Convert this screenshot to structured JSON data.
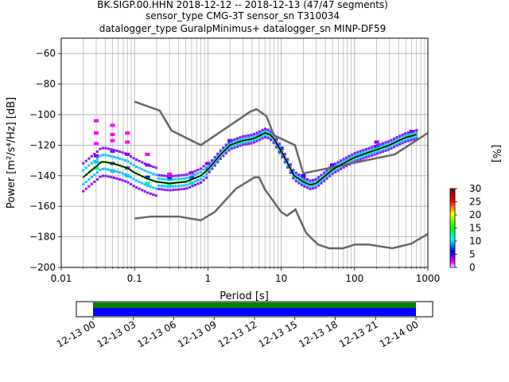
{
  "chart_data": {
    "type": "heatmap",
    "title": {
      "line1": "BK.SIGP.00.HHN   2018-12-12 -- 2018-12-13  (47/47 segments)",
      "line2": "sensor_type CMG-3T sensor_sn T310034",
      "line3": "datalogger_type GuralpMinimus+ datalogger_sn MINP-DF59"
    },
    "xlabel": "Period [s]",
    "ylabel": "Power [m²/s⁴/Hz] [dB]",
    "xscale": "log",
    "xlim": [
      0.01,
      1000
    ],
    "ylim": [
      -200,
      -50
    ],
    "x_ticks": [
      {
        "v": 0.01,
        "label": "0.01"
      },
      {
        "v": 0.1,
        "label": "0.1"
      },
      {
        "v": 1,
        "label": "1"
      },
      {
        "v": 10,
        "label": "10"
      },
      {
        "v": 100,
        "label": "100"
      },
      {
        "v": 1000,
        "label": "1000"
      }
    ],
    "y_ticks": [
      {
        "v": -60,
        "label": "−60"
      },
      {
        "v": -80,
        "label": "−80"
      },
      {
        "v": -100,
        "label": "−100"
      },
      {
        "v": -120,
        "label": "−120"
      },
      {
        "v": -140,
        "label": "−140"
      },
      {
        "v": -160,
        "label": "−160"
      },
      {
        "v": -180,
        "label": "−180"
      },
      {
        "v": -200,
        "label": "−200"
      }
    ],
    "grid": true,
    "colorbar": {
      "label": "[%]",
      "range": [
        0,
        30
      ],
      "ticks": [
        {
          "v": 0,
          "label": "0"
        },
        {
          "v": 5,
          "label": "5"
        },
        {
          "v": 10,
          "label": "10"
        },
        {
          "v": 15,
          "label": "15"
        },
        {
          "v": 20,
          "label": "20"
        },
        {
          "v": 25,
          "label": "25"
        },
        {
          "v": 30,
          "label": "30"
        }
      ]
    },
    "noise_models": [
      {
        "name": "NHNM",
        "color": "#666666",
        "x": [
          0.1,
          0.22,
          0.32,
          0.8,
          3.8,
          4.6,
          6.3,
          7.9,
          15.4,
          20,
          354.8,
          1000
        ],
        "y": [
          -91.5,
          -97.4,
          -110.5,
          -120,
          -98,
          -96.5,
          -101,
          -113.5,
          -120,
          -138.5,
          -126,
          -112
        ]
      },
      {
        "name": "NLNM",
        "color": "#666666",
        "x": [
          0.1,
          0.17,
          0.4,
          0.8,
          1.24,
          2.4,
          4.3,
          5,
          6,
          10,
          12,
          15.6,
          21.9,
          31.6,
          45,
          70,
          101,
          154,
          328,
          600,
          1000
        ],
        "y": [
          -168,
          -166.7,
          -166.7,
          -169.2,
          -163.7,
          -148.6,
          -141.1,
          -141.1,
          -149,
          -163.8,
          -166.2,
          -162.1,
          -177.5,
          -185,
          -187.5,
          -187.5,
          -185,
          -185,
          -187.5,
          -184.4,
          -178
        ]
      }
    ],
    "psd_mode": {
      "name": "mode",
      "color": "#000000",
      "x": [
        0.02,
        0.025,
        0.03,
        0.035,
        0.04,
        0.05,
        0.06,
        0.08,
        0.1,
        0.15,
        0.2,
        0.3,
        0.5,
        0.8,
        1,
        1.5,
        2,
        3,
        4,
        5,
        6,
        7,
        8,
        10,
        12,
        15,
        20,
        25,
        30,
        40,
        50,
        70,
        100,
        150,
        200,
        300,
        400,
        500,
        700
      ],
      "y": [
        -141,
        -137,
        -134,
        -131,
        -131,
        -132,
        -133,
        -135,
        -138,
        -142,
        -144,
        -145,
        -144,
        -140,
        -136,
        -126,
        -120,
        -117,
        -116,
        -114,
        -112,
        -113,
        -116,
        -124,
        -131,
        -140,
        -144,
        -146,
        -145,
        -140,
        -136,
        -132,
        -128,
        -125,
        -123,
        -120,
        -117,
        -115,
        -113
      ]
    },
    "psd_density": [
      {
        "x": 0.03,
        "pct": [
          [
            -135,
            12
          ],
          [
            -131,
            9
          ],
          [
            -127,
            4
          ],
          [
            -119,
            2
          ],
          [
            -112,
            1
          ],
          [
            -104,
            1
          ]
        ]
      },
      {
        "x": 0.05,
        "pct": [
          [
            -137,
            11
          ],
          [
            -132,
            8
          ],
          [
            -124,
            4
          ],
          [
            -117,
            2
          ],
          [
            -113,
            1
          ],
          [
            -107,
            1
          ]
        ]
      },
      {
        "x": 0.08,
        "pct": [
          [
            -140,
            10
          ],
          [
            -135,
            8
          ],
          [
            -126,
            3
          ],
          [
            -118,
            2
          ],
          [
            -112,
            1
          ]
        ]
      },
      {
        "x": 0.15,
        "pct": [
          [
            -145,
            12
          ],
          [
            -141,
            6
          ],
          [
            -133,
            3
          ],
          [
            -126,
            1
          ]
        ]
      },
      {
        "x": 0.3,
        "pct": [
          [
            -146,
            12
          ],
          [
            -142,
            6
          ],
          [
            -139,
            2
          ]
        ]
      },
      {
        "x": 0.6,
        "pct": [
          [
            -145,
            14
          ],
          [
            -141,
            8
          ],
          [
            -138,
            2
          ]
        ]
      },
      {
        "x": 1,
        "pct": [
          [
            -137,
            16
          ],
          [
            -135,
            8
          ],
          [
            -132,
            3
          ]
        ]
      },
      {
        "x": 2,
        "pct": [
          [
            -121,
            18
          ],
          [
            -119,
            9
          ],
          [
            -117,
            3
          ]
        ]
      },
      {
        "x": 5,
        "pct": [
          [
            -114,
            20
          ],
          [
            -113,
            10
          ]
        ]
      },
      {
        "x": 10,
        "pct": [
          [
            -125,
            16
          ],
          [
            -122,
            8
          ]
        ]
      },
      {
        "x": 20,
        "pct": [
          [
            -143,
            14
          ],
          [
            -140,
            7
          ]
        ]
      },
      {
        "x": 50,
        "pct": [
          [
            -136,
            14
          ],
          [
            -133,
            6
          ]
        ]
      },
      {
        "x": 200,
        "pct": [
          [
            -123,
            12
          ],
          [
            -121,
            6
          ],
          [
            -118,
            3
          ]
        ]
      },
      {
        "x": 600,
        "pct": [
          [
            -114,
            10
          ],
          [
            -111,
            4
          ]
        ]
      }
    ],
    "timeline": {
      "ticks": [
        "12-13 00",
        "12-13 03",
        "12-13 06",
        "12-13 09",
        "12-13 12",
        "12-13 15",
        "12-13 18",
        "12-13 21",
        "12-14 00"
      ],
      "bars": [
        {
          "color": "#008000"
        },
        {
          "color": "#0000ff"
        }
      ]
    }
  }
}
